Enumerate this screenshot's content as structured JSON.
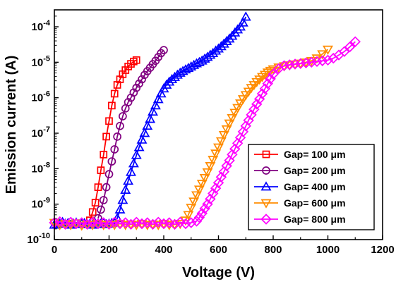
{
  "chart_data": {
    "type": "line",
    "xlabel": "Voltage (V)",
    "ylabel": "Emission current (A)",
    "xlim": [
      0,
      1200
    ],
    "ylim": [
      1e-10,
      0.0003
    ],
    "yscale": "log",
    "grid": false,
    "legend_position": "lower-right",
    "x_ticks": [
      "0",
      "200",
      "400",
      "600",
      "800",
      "1000",
      "1200"
    ],
    "y_ticks": [
      {
        "base": "10",
        "exp": "-10",
        "value": 1e-10
      },
      {
        "base": "10",
        "exp": "-9",
        "value": 1e-09
      },
      {
        "base": "10",
        "exp": "-8",
        "value": 1e-08
      },
      {
        "base": "10",
        "exp": "-7",
        "value": 1e-07
      },
      {
        "base": "10",
        "exp": "-6",
        "value": 1e-06
      },
      {
        "base": "10",
        "exp": "-5",
        "value": 1e-05
      },
      {
        "base": "10",
        "exp": "-4",
        "value": 0.0001
      }
    ],
    "series": [
      {
        "name": "Gap= 100 μm",
        "color": "#ff0000",
        "marker": "square",
        "x": [
          130,
          140,
          150,
          160,
          170,
          180,
          190,
          200,
          210,
          220,
          230,
          240,
          250,
          260,
          270,
          280,
          290,
          300
        ],
        "y": [
          3.5e-10,
          6e-10,
          1.1e-09,
          3e-09,
          9e-09,
          2.5e-08,
          8e-08,
          2.2e-07,
          6e-07,
          1.3e-06,
          2.3e-06,
          3.3e-06,
          4.6e-06,
          6e-06,
          7.6e-06,
          9e-06,
          1.05e-05,
          1.15e-05
        ]
      },
      {
        "name": "Gap= 200 μm",
        "color": "#800080",
        "marker": "circle",
        "x": [
          160,
          170,
          180,
          190,
          200,
          210,
          220,
          230,
          240,
          250,
          260,
          270,
          280,
          290,
          300,
          310,
          320,
          330,
          340,
          350,
          360,
          370,
          380,
          390,
          400
        ],
        "y": [
          4e-10,
          7e-10,
          1.3e-09,
          3e-09,
          7e-09,
          1.6e-08,
          3.5e-08,
          8e-08,
          1.6e-07,
          3e-07,
          5e-07,
          7.5e-07,
          1e-06,
          1.4e-06,
          1.9e-06,
          2.5e-06,
          3.3e-06,
          4.4e-06,
          5.6e-06,
          7e-06,
          8.8e-06,
          1.1e-05,
          1.4e-05,
          1.8e-05,
          2.2e-05
        ]
      },
      {
        "name": "Gap= 400 μm",
        "color": "#0000ff",
        "marker": "triangle-up",
        "x": [
          0,
          10,
          20,
          30,
          40,
          50,
          60,
          70,
          80,
          90,
          100,
          110,
          120,
          130,
          140,
          150,
          160,
          170,
          180,
          190,
          200,
          210,
          220,
          230,
          240,
          250,
          260,
          270,
          280,
          290,
          300,
          310,
          320,
          330,
          340,
          350,
          360,
          370,
          380,
          390,
          400,
          410,
          420,
          430,
          440,
          450,
          460,
          470,
          480,
          490,
          500,
          510,
          520,
          530,
          540,
          550,
          560,
          570,
          580,
          590,
          600,
          610,
          620,
          630,
          640,
          650,
          660,
          670,
          680,
          690,
          700
        ],
        "y": [
          2.6e-10,
          2.7e-10,
          2.8e-10,
          3.1e-10,
          2.8e-10,
          2.9e-10,
          2.6e-10,
          2.8e-10,
          3e-10,
          2.7e-10,
          2.8e-10,
          2.9e-10,
          2.7e-10,
          2.8e-10,
          2.6e-10,
          2.8e-10,
          2.7e-10,
          2.8e-10,
          3e-10,
          2.7e-10,
          2.8e-10,
          2.9e-10,
          3e-10,
          4e-10,
          7e-10,
          1.3e-09,
          2.5e-09,
          4.5e-09,
          8e-09,
          1.4e-08,
          2.4e-08,
          4e-08,
          6.5e-08,
          1e-07,
          1.6e-07,
          2.5e-07,
          4e-07,
          6e-07,
          9e-07,
          1.3e-06,
          1.8e-06,
          2.3e-06,
          2.8e-06,
          3.3e-06,
          3.8e-06,
          4.4e-06,
          5e-06,
          5.6e-06,
          6.2e-06,
          6.8e-06,
          7.5e-06,
          8.3e-06,
          9.2e-06,
          1e-05,
          1.1e-05,
          1.25e-05,
          1.4e-05,
          1.6e-05,
          1.8e-05,
          2.1e-05,
          2.4e-05,
          2.8e-05,
          3.3e-05,
          3.9e-05,
          4.6e-05,
          5.5e-05,
          6.8e-05,
          8.3e-05,
          0.0001,
          0.00013,
          0.00019
        ]
      },
      {
        "name": "Gap= 600 μm",
        "color": "#ff8c00",
        "marker": "triangle-down",
        "x": [
          0,
          20,
          40,
          60,
          80,
          100,
          120,
          140,
          160,
          180,
          200,
          220,
          240,
          260,
          280,
          300,
          320,
          340,
          360,
          380,
          400,
          420,
          440,
          460,
          480,
          490,
          500,
          510,
          520,
          530,
          540,
          550,
          560,
          570,
          580,
          590,
          600,
          610,
          620,
          630,
          640,
          650,
          660,
          670,
          680,
          690,
          700,
          710,
          720,
          730,
          740,
          750,
          760,
          770,
          780,
          790,
          800,
          820,
          840,
          860,
          880,
          900,
          920,
          940,
          960,
          980,
          1000
        ],
        "y": [
          3e-10,
          2.6e-10,
          2.8e-10,
          2.6e-10,
          2.9e-10,
          2.5e-10,
          2.7e-10,
          2.6e-10,
          2.8e-10,
          2.6e-10,
          2.7e-10,
          2.6e-10,
          2.8e-10,
          2.6e-10,
          2.7e-10,
          2.6e-10,
          2.8e-10,
          2.6e-10,
          2.7e-10,
          2.6e-10,
          2.8e-10,
          2.6e-10,
          2.7e-10,
          2.8e-10,
          3.5e-10,
          5e-10,
          8e-10,
          1.2e-09,
          1.8e-09,
          2.6e-09,
          3.8e-09,
          5.5e-09,
          8e-09,
          1.2e-08,
          1.8e-08,
          2.7e-08,
          4e-08,
          6e-08,
          9e-08,
          1.3e-07,
          1.9e-07,
          2.7e-07,
          3.8e-07,
          5.2e-07,
          7e-07,
          9.2e-07,
          1.2e-06,
          1.5e-06,
          1.9e-06,
          2.3e-06,
          2.8e-06,
          3.3e-06,
          3.9e-06,
          4.5e-06,
          5.2e-06,
          5.8e-06,
          6.4e-06,
          7.2e-06,
          7.8e-06,
          8.3e-06,
          8.8e-06,
          9.3e-06,
          1e-05,
          1.1e-05,
          1.3e-05,
          1.7e-05,
          2.3e-05
        ]
      },
      {
        "name": "Gap= 800 μm",
        "color": "#ff00ff",
        "marker": "diamond",
        "x": [
          0,
          20,
          40,
          60,
          80,
          100,
          120,
          140,
          160,
          180,
          200,
          220,
          240,
          260,
          280,
          300,
          320,
          340,
          360,
          380,
          400,
          420,
          440,
          460,
          480,
          500,
          520,
          530,
          540,
          550,
          560,
          570,
          580,
          590,
          600,
          610,
          620,
          630,
          640,
          650,
          660,
          670,
          680,
          690,
          700,
          710,
          720,
          730,
          740,
          750,
          760,
          770,
          780,
          790,
          800,
          820,
          840,
          860,
          880,
          900,
          920,
          940,
          960,
          980,
          1000,
          1020,
          1040,
          1060,
          1080,
          1100
        ],
        "y": [
          3e-10,
          3.2e-10,
          2.7e-10,
          3.1e-10,
          2.8e-10,
          3e-10,
          2.7e-10,
          3.1e-10,
          2.8e-10,
          3e-10,
          2.7e-10,
          3.1e-10,
          2.8e-10,
          3e-10,
          2.7e-10,
          3.1e-10,
          2.8e-10,
          3e-10,
          2.7e-10,
          3.1e-10,
          2.8e-10,
          3e-10,
          2.7e-10,
          3.1e-10,
          2.8e-10,
          3e-10,
          3.3e-10,
          4.2e-10,
          5.5e-10,
          7.5e-10,
          1e-09,
          1.4e-09,
          2e-09,
          2.8e-09,
          4e-09,
          5.8e-09,
          8.2e-09,
          1.2e-08,
          1.7e-08,
          2.5e-08,
          3.6e-08,
          5.2e-08,
          7.5e-08,
          1.1e-07,
          1.6e-07,
          2.3e-07,
          3.3e-07,
          4.7e-07,
          6.6e-07,
          9.2e-07,
          1.3e-06,
          1.8e-06,
          2.5e-06,
          3.4e-06,
          4.6e-06,
          6.6e-06,
          8e-06,
          8.5e-06,
          8.9e-06,
          9.2e-06,
          9.6e-06,
          1e-05,
          1.05e-05,
          1.1e-05,
          1.15e-05,
          1.3e-05,
          1.6e-05,
          2e-05,
          2.7e-05,
          3.8e-05
        ]
      }
    ]
  }
}
